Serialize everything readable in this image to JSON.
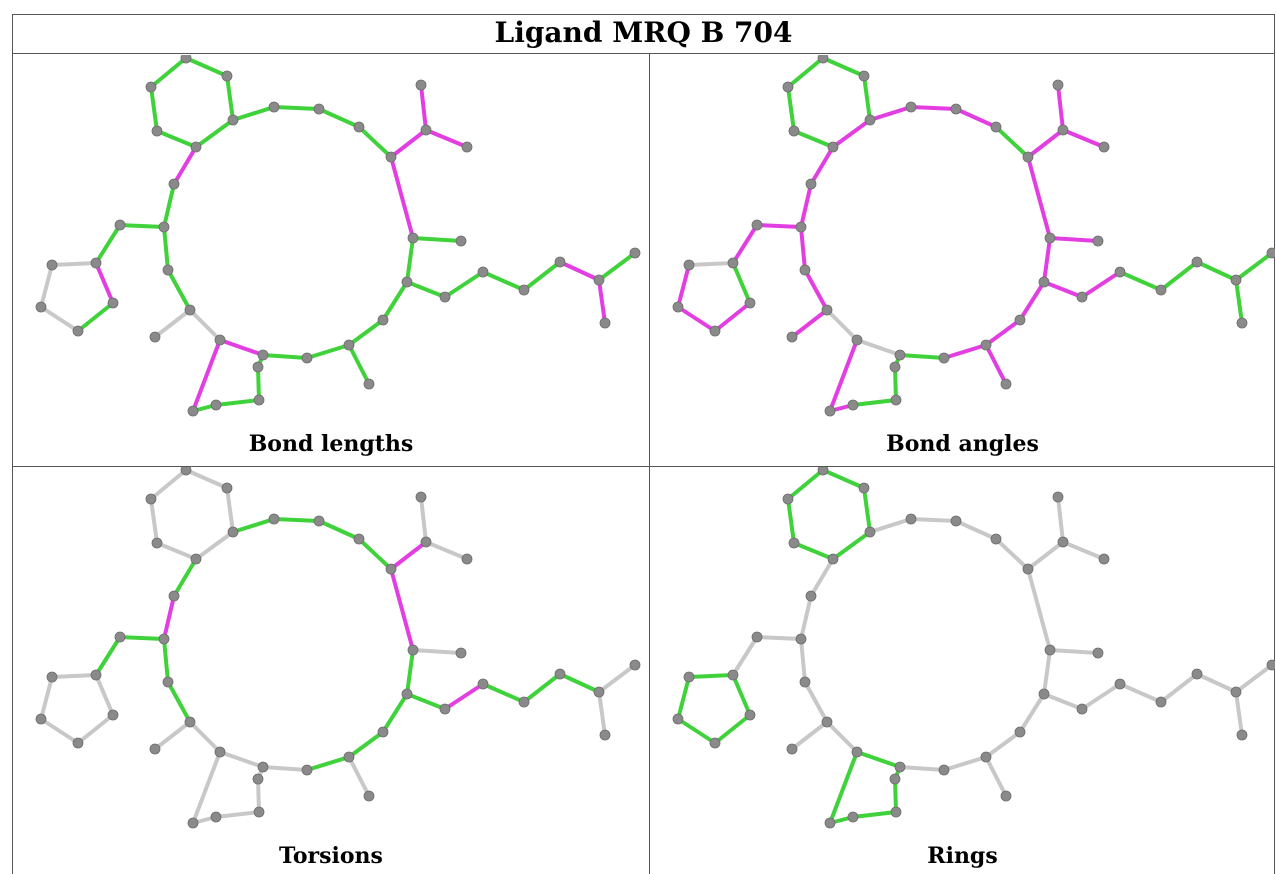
{
  "title": "Ligand MRQ B 704",
  "colors": {
    "green": "#3fd23a",
    "magenta": "#e23ee2",
    "gray": "#c8c8c8",
    "atom": "#8a8a8a"
  },
  "panels": [
    {
      "caption": "Bond lengths",
      "variant": "lengths"
    },
    {
      "caption": "Bond angles",
      "variant": "angles"
    },
    {
      "caption": "Torsions",
      "variant": "torsions"
    },
    {
      "caption": "Rings",
      "variant": "rings"
    }
  ]
}
